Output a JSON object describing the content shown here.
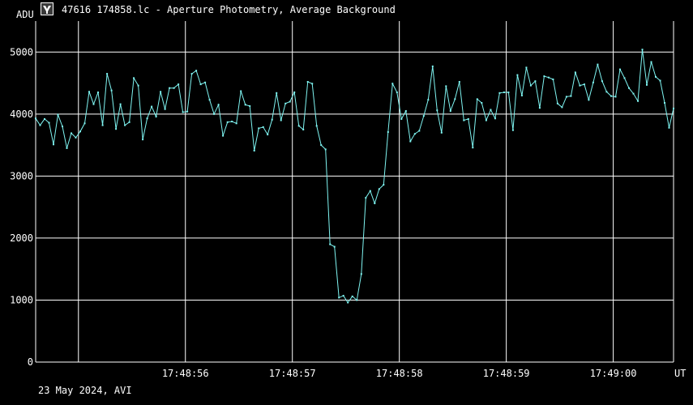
{
  "window": {
    "title": "47616 174858.lc - Aperture Photometry, Average Background"
  },
  "icons": {
    "app": "app-logo-icon"
  },
  "footer": {
    "date_label": "23 May 2024, AVI"
  },
  "colors": {
    "background": "#000000",
    "grid": "#ffffff",
    "series": "#7ff5f2"
  },
  "chart_data": {
    "type": "line",
    "title": "",
    "xlabel": "UT",
    "ylabel": "ADU",
    "ylim": [
      0,
      5500
    ],
    "xlim": [
      -0.3999,
      5.5637
    ],
    "yticks": [
      0,
      1000,
      2000,
      3000,
      4000,
      5000
    ],
    "xticks": [
      {
        "t": 1,
        "label": "17:48:56"
      },
      {
        "t": 2,
        "label": "17:48:57"
      },
      {
        "t": 3,
        "label": "17:48:58"
      },
      {
        "t": 4,
        "label": "17:48:59"
      },
      {
        "t": 5,
        "label": "17:49:00"
      }
    ],
    "grid": true,
    "legend": "none",
    "series": [
      {
        "name": "",
        "y": [
          3930,
          3820,
          3920,
          3860,
          3510,
          3990,
          3800,
          3450,
          3690,
          3620,
          3720,
          3850,
          4360,
          4160,
          4350,
          3820,
          4650,
          4380,
          3760,
          4160,
          3820,
          3870,
          4580,
          4460,
          3590,
          3930,
          4120,
          3960,
          4360,
          4080,
          4420,
          4420,
          4480,
          4030,
          4040,
          4650,
          4700,
          4480,
          4510,
          4230,
          4000,
          4150,
          3650,
          3870,
          3880,
          3850,
          4370,
          4150,
          4130,
          3410,
          3770,
          3790,
          3670,
          3910,
          4340,
          3900,
          4170,
          4200,
          4350,
          3810,
          3750,
          4520,
          4490,
          3810,
          3500,
          3430,
          1900,
          1860,
          1040,
          1070,
          960,
          1060,
          1000,
          1420,
          2650,
          2760,
          2560,
          2790,
          2860,
          3710,
          4490,
          4350,
          3920,
          4050,
          3560,
          3680,
          3730,
          3970,
          4230,
          4770,
          4060,
          3700,
          4450,
          4050,
          4240,
          4520,
          3900,
          3920,
          3460,
          4240,
          4180,
          3900,
          4070,
          3930,
          4340,
          4350,
          4350,
          3740,
          4630,
          4300,
          4750,
          4460,
          4530,
          4100,
          4610,
          4590,
          4560,
          4170,
          4110,
          4280,
          4290,
          4670,
          4460,
          4480,
          4230,
          4510,
          4800,
          4530,
          4360,
          4290,
          4280,
          4720,
          4580,
          4420,
          4330,
          4210,
          5040,
          4470,
          4840,
          4600,
          4540,
          4180,
          3780,
          4090
        ]
      }
    ]
  }
}
